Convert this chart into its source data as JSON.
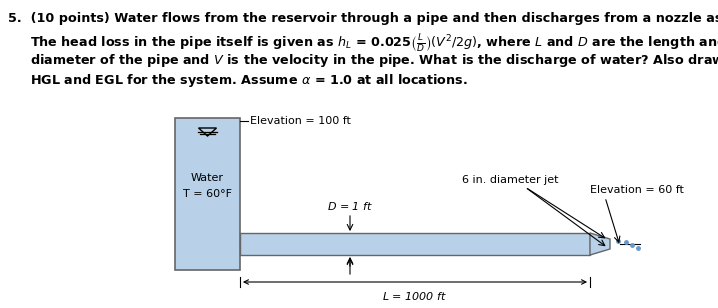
{
  "bg_color": "#ffffff",
  "text_color": "#000000",
  "reservoir_color": "#b8d0e8",
  "elevation_top_label": "Elevation = 100 ft",
  "elevation_right_label": "Elevation = 60 ft",
  "water_label": "Water",
  "temp_label": "T = 60°F",
  "D_label": "D = 1 ft",
  "jet_label": "6 in. diameter jet",
  "L_label": "L = 1000 ft",
  "fig_width": 7.18,
  "fig_height": 3.08,
  "dpi": 100
}
